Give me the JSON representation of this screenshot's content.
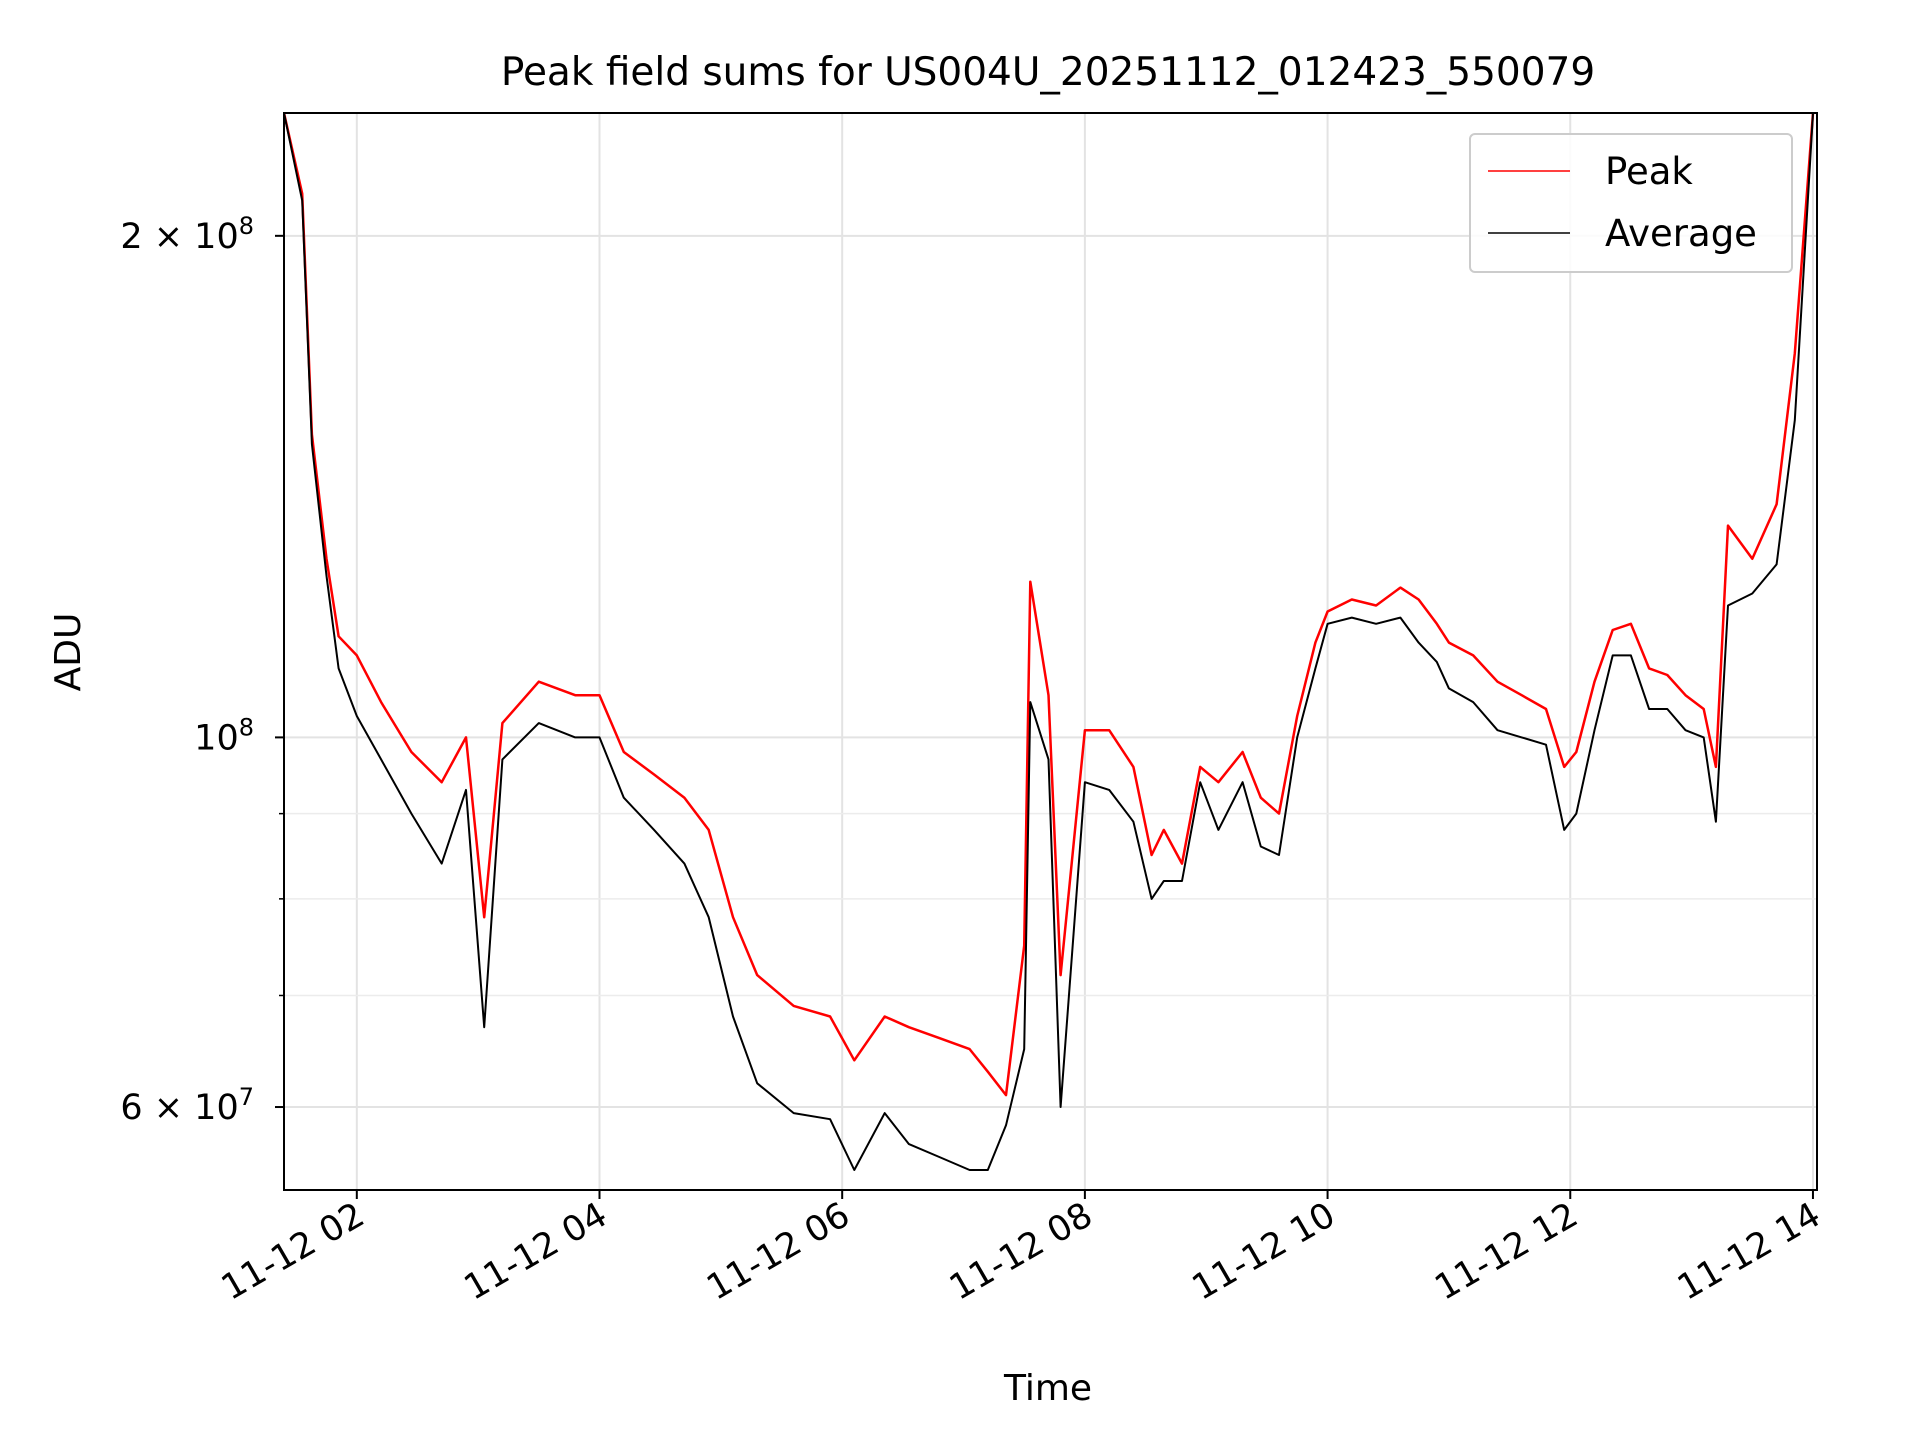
{
  "chart_data": {
    "type": "line",
    "title": "Peak field sums for US004U_20251112_012423_550079",
    "xlabel": "Time",
    "ylabel": "ADU",
    "yscale": "log",
    "ylim": [
      53500000,
      237000000
    ],
    "xlim": [
      "11-12 01:24",
      "11-12 14:02"
    ],
    "grid": true,
    "legend_position": "top-right",
    "x_ticks": [
      "11-12 02",
      "11-12 04",
      "11-12 06",
      "11-12 08",
      "11-12 10",
      "11-12 12",
      "11-12 14"
    ],
    "x_tick_hours": [
      2,
      4,
      6,
      8,
      10,
      12,
      14
    ],
    "y_major_ticks": [
      {
        "value": 60000000,
        "mantissa": "6",
        "exponent": "7",
        "times": "×",
        "base": "10"
      },
      {
        "value": 100000000,
        "mantissa": "",
        "exponent": "8",
        "times": "",
        "base": "10"
      },
      {
        "value": 200000000,
        "mantissa": "2",
        "exponent": "8",
        "times": "×",
        "base": "10"
      }
    ],
    "y_minor_ticks": [
      70000000,
      80000000,
      90000000
    ],
    "x_hours": [
      1.4,
      1.55,
      1.63,
      1.75,
      1.85,
      2.0,
      2.2,
      2.45,
      2.7,
      2.9,
      3.05,
      3.2,
      3.5,
      3.8,
      4.0,
      4.2,
      4.45,
      4.7,
      4.9,
      5.1,
      5.3,
      5.6,
      5.9,
      6.1,
      6.35,
      6.55,
      6.8,
      7.05,
      7.2,
      7.35,
      7.5,
      7.55,
      7.7,
      7.8,
      8.0,
      8.2,
      8.4,
      8.55,
      8.65,
      8.8,
      8.95,
      9.1,
      9.3,
      9.45,
      9.6,
      9.75,
      9.9,
      10.0,
      10.2,
      10.4,
      10.6,
      10.75,
      10.9,
      11.0,
      11.2,
      11.4,
      11.6,
      11.8,
      11.95,
      12.05,
      12.2,
      12.35,
      12.5,
      12.65,
      12.8,
      12.95,
      13.1,
      13.2,
      13.3,
      13.5,
      13.7,
      13.85,
      14.0
    ],
    "series": [
      {
        "name": "Peak",
        "color": "#ff0000",
        "values": [
          237000000,
          212000000,
          152000000,
          128000000,
          115000000,
          112000000,
          105000000,
          98000000,
          94000000,
          100000000,
          78000000,
          102000000,
          108000000,
          106000000,
          106000000,
          98000000,
          95000000,
          92000000,
          88000000,
          78000000,
          72000000,
          69000000,
          68000000,
          64000000,
          68000000,
          67000000,
          66000000,
          65000000,
          63000000,
          61000000,
          75000000,
          124000000,
          106000000,
          72000000,
          101000000,
          101000000,
          96000000,
          85000000,
          88000000,
          84000000,
          96000000,
          94000000,
          98000000,
          92000000,
          90000000,
          103000000,
          114000000,
          119000000,
          121000000,
          120000000,
          123000000,
          121000000,
          117000000,
          114000000,
          112000000,
          108000000,
          106000000,
          104000000,
          96000000,
          98000000,
          108000000,
          116000000,
          117000000,
          110000000,
          109000000,
          106000000,
          104000000,
          96000000,
          134000000,
          128000000,
          138000000,
          170000000,
          237000000
        ]
      },
      {
        "name": "Average",
        "color": "#000000",
        "values": [
          237000000,
          210000000,
          150000000,
          125000000,
          110000000,
          103000000,
          97000000,
          90000000,
          84000000,
          93000000,
          67000000,
          97000000,
          102000000,
          100000000,
          100000000,
          92000000,
          88000000,
          84000000,
          78000000,
          68000000,
          62000000,
          59500000,
          59000000,
          55000000,
          59500000,
          57000000,
          56000000,
          55000000,
          55000000,
          58500000,
          65000000,
          105000000,
          97000000,
          60000000,
          94000000,
          93000000,
          89000000,
          80000000,
          82000000,
          82000000,
          94000000,
          88000000,
          94000000,
          86000000,
          85000000,
          100000000,
          110000000,
          117000000,
          118000000,
          117000000,
          118000000,
          114000000,
          111000000,
          107000000,
          105000000,
          101000000,
          100000000,
          99000000,
          88000000,
          90000000,
          101000000,
          112000000,
          112000000,
          104000000,
          104000000,
          101000000,
          100000000,
          89000000,
          120000000,
          122000000,
          127000000,
          155000000,
          237000000
        ]
      }
    ]
  }
}
